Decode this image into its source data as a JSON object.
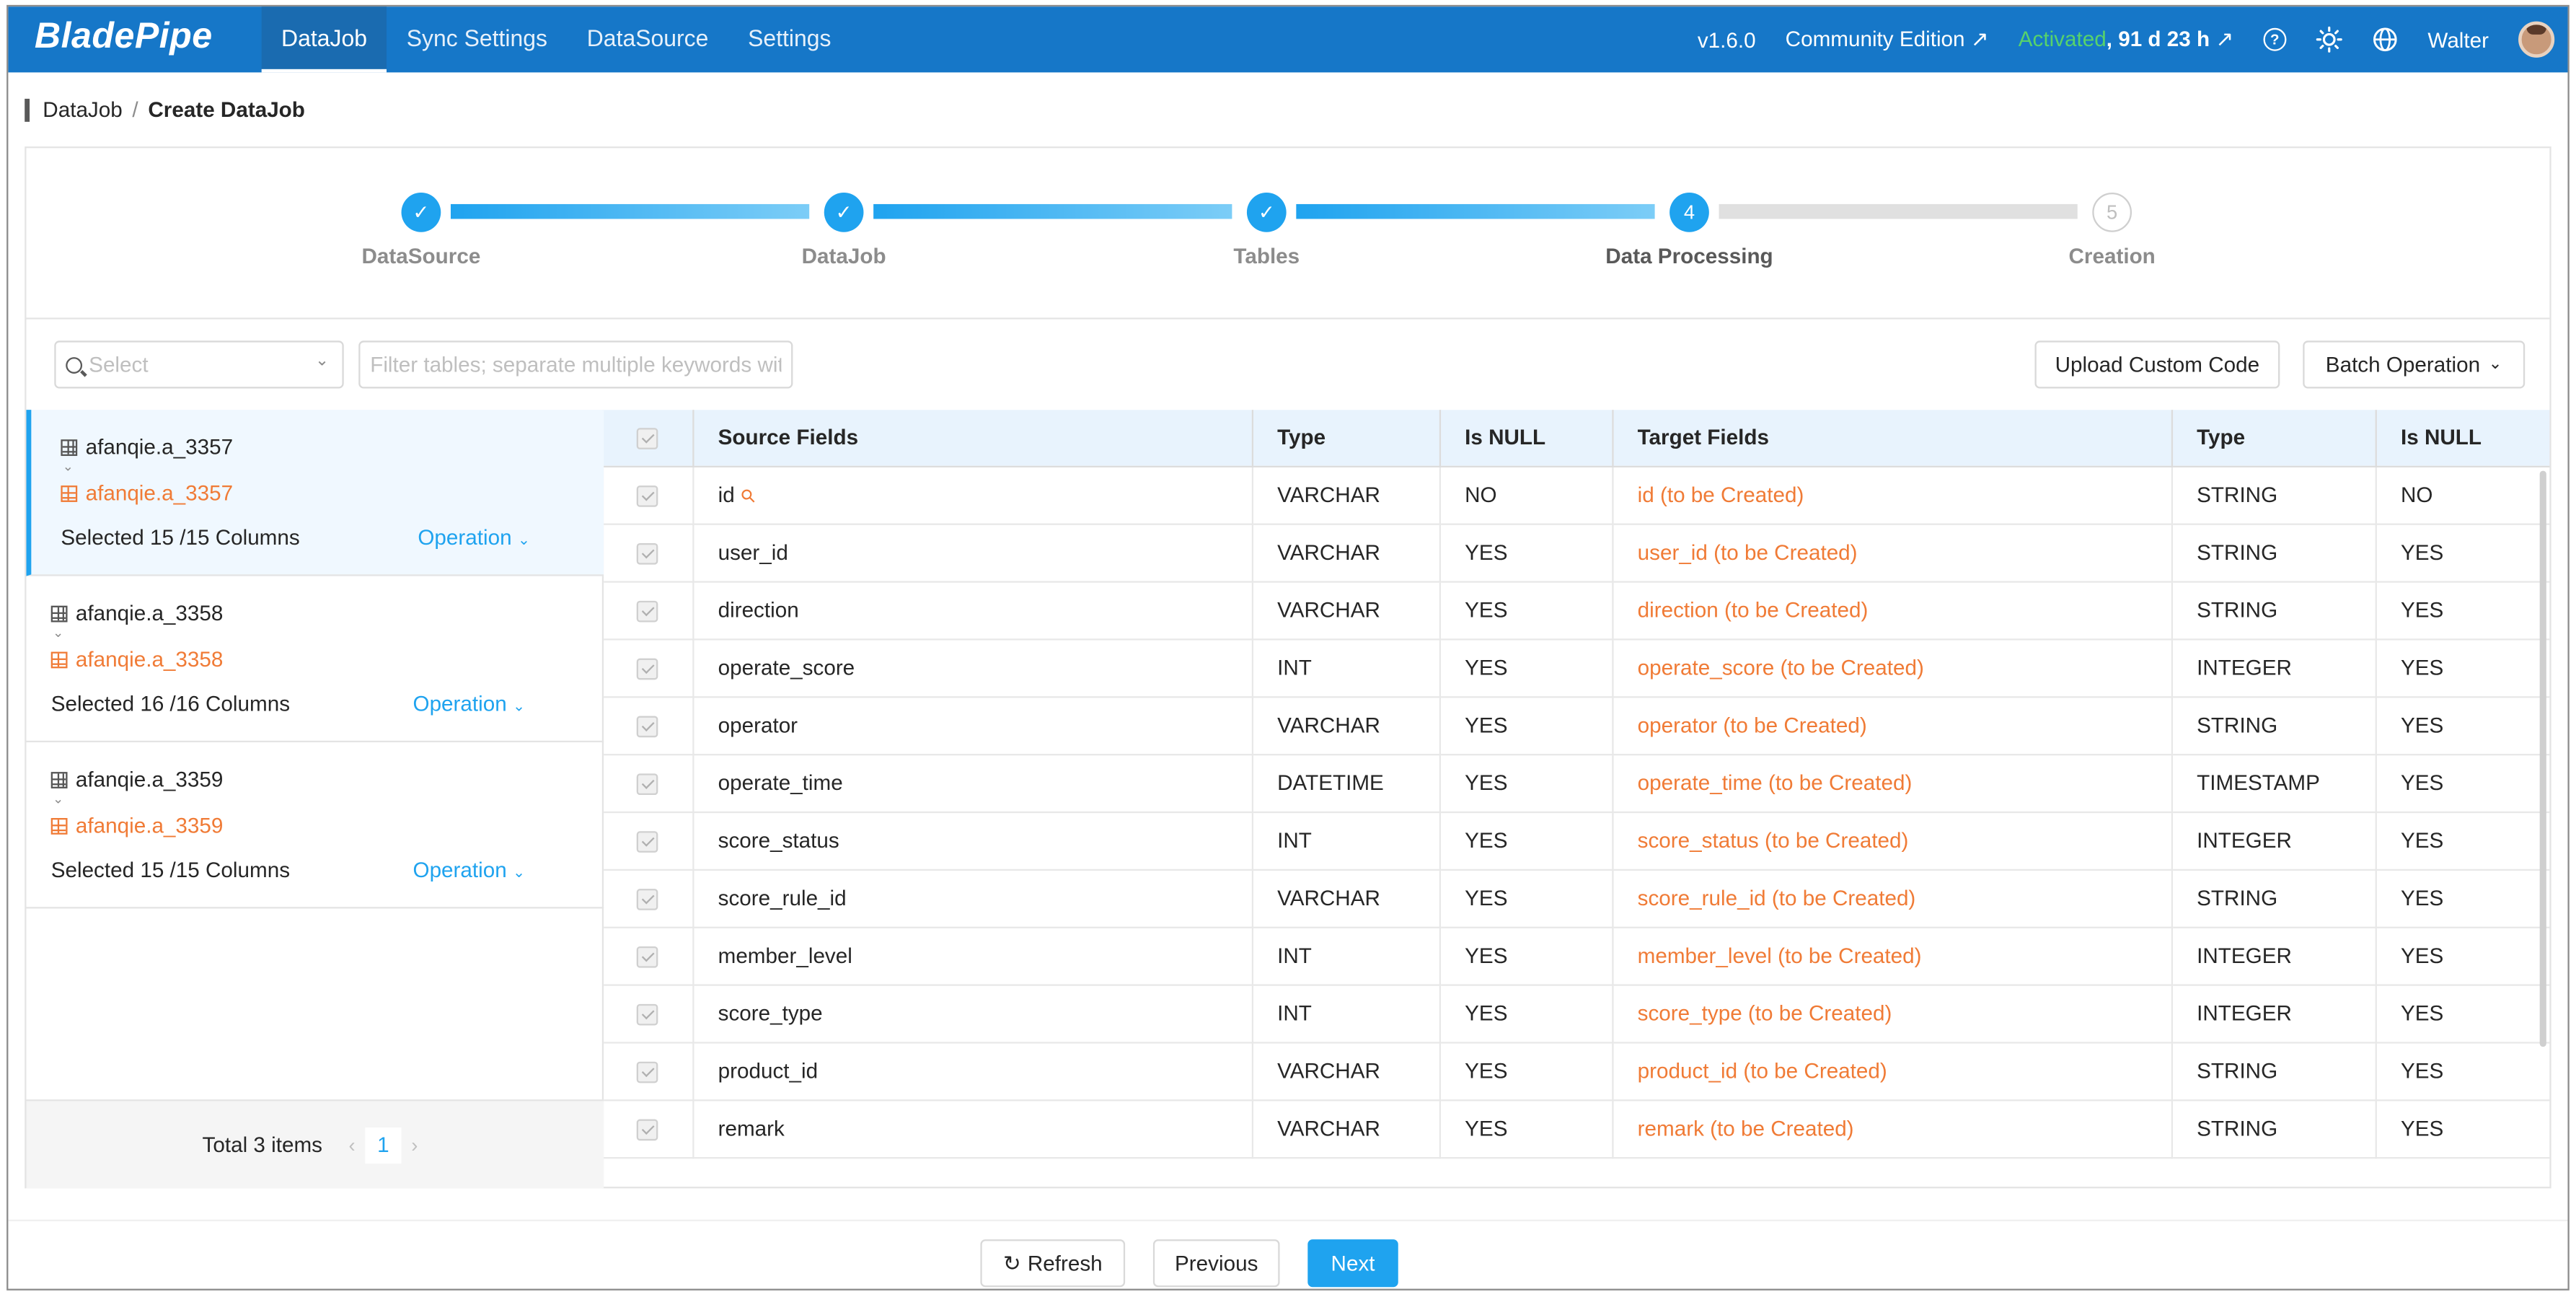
{
  "app": {
    "logo": "BladePipe",
    "version": "v1.6.0",
    "edition": "Community Edition",
    "edition_arrow": "↗",
    "activated_label": "Activated",
    "license_remaining": ", 91 d 23 h",
    "license_arrow": "↗",
    "user": "Walter"
  },
  "nav": {
    "items": [
      {
        "label": "DataJob"
      },
      {
        "label": "Sync Settings"
      },
      {
        "label": "DataSource"
      },
      {
        "label": "Settings"
      }
    ],
    "active": "DataJob"
  },
  "breadcrumb": {
    "parent": "DataJob",
    "separator": "/",
    "current": "Create DataJob"
  },
  "steps": [
    {
      "label": "DataSource",
      "status": "done",
      "mark": "✓"
    },
    {
      "label": "DataJob",
      "status": "done",
      "mark": "✓"
    },
    {
      "label": "Tables",
      "status": "done",
      "mark": "✓"
    },
    {
      "label": "Data Processing",
      "status": "current",
      "mark": "4"
    },
    {
      "label": "Creation",
      "status": "todo",
      "mark": "5"
    }
  ],
  "filters": {
    "select_placeholder": "Select",
    "filter_placeholder": "Filter tables; separate multiple keywords with",
    "upload_button": "Upload Custom Code",
    "batch_button": "Batch Operation"
  },
  "tables": [
    {
      "source": "afanqie.a_3357",
      "target": "afanqie.a_3357",
      "count": "Selected 15 /15 Columns",
      "operation": "Operation"
    },
    {
      "source": "afanqie.a_3358",
      "target": "afanqie.a_3358",
      "count": "Selected 16 /16 Columns",
      "operation": "Operation"
    },
    {
      "source": "afanqie.a_3359",
      "target": "afanqie.a_3359",
      "count": "Selected 15 /15 Columns",
      "operation": "Operation"
    }
  ],
  "list_footer": {
    "total": "Total 3 items",
    "page": "1"
  },
  "columns": {
    "source_fields": "Source Fields",
    "type": "Type",
    "is_null": "Is NULL",
    "target_fields": "Target Fields",
    "target_type": "Type",
    "target_is_null": "Is NULL"
  },
  "rows": [
    {
      "source": "id",
      "type": "VARCHAR",
      "null": "NO",
      "target": "id (to be Created)",
      "ttype": "STRING",
      "tnull": "NO",
      "key": true
    },
    {
      "source": "user_id",
      "type": "VARCHAR",
      "null": "YES",
      "target": "user_id (to be Created)",
      "ttype": "STRING",
      "tnull": "YES"
    },
    {
      "source": "direction",
      "type": "VARCHAR",
      "null": "YES",
      "target": "direction (to be Created)",
      "ttype": "STRING",
      "tnull": "YES"
    },
    {
      "source": "operate_score",
      "type": "INT",
      "null": "YES",
      "target": "operate_score (to be Created)",
      "ttype": "INTEGER",
      "tnull": "YES"
    },
    {
      "source": "operator",
      "type": "VARCHAR",
      "null": "YES",
      "target": "operator (to be Created)",
      "ttype": "STRING",
      "tnull": "YES"
    },
    {
      "source": "operate_time",
      "type": "DATETIME",
      "null": "YES",
      "target": "operate_time (to be Created)",
      "ttype": "TIMESTAMP",
      "tnull": "YES"
    },
    {
      "source": "score_status",
      "type": "INT",
      "null": "YES",
      "target": "score_status (to be Created)",
      "ttype": "INTEGER",
      "tnull": "YES"
    },
    {
      "source": "score_rule_id",
      "type": "VARCHAR",
      "null": "YES",
      "target": "score_rule_id (to be Created)",
      "ttype": "STRING",
      "tnull": "YES"
    },
    {
      "source": "member_level",
      "type": "INT",
      "null": "YES",
      "target": "member_level (to be Created)",
      "ttype": "INTEGER",
      "tnull": "YES"
    },
    {
      "source": "score_type",
      "type": "INT",
      "null": "YES",
      "target": "score_type (to be Created)",
      "ttype": "INTEGER",
      "tnull": "YES"
    },
    {
      "source": "product_id",
      "type": "VARCHAR",
      "null": "YES",
      "target": "product_id (to be Created)",
      "ttype": "STRING",
      "tnull": "YES"
    },
    {
      "source": "remark",
      "type": "VARCHAR",
      "null": "YES",
      "target": "remark (to be Created)",
      "ttype": "STRING",
      "tnull": "YES"
    }
  ],
  "actions": {
    "refresh": "Refresh",
    "previous": "Previous",
    "next": "Next"
  },
  "colors": {
    "header_bg": "#1677c8",
    "accent": "#1fa3ef",
    "target_text": "#f07b36",
    "activated": "#57d26b"
  },
  "icons": {
    "help": "question-circle-icon",
    "theme": "sun-icon",
    "language": "globe-icon",
    "refresh": "reload-icon",
    "key": "primary-key-icon"
  }
}
